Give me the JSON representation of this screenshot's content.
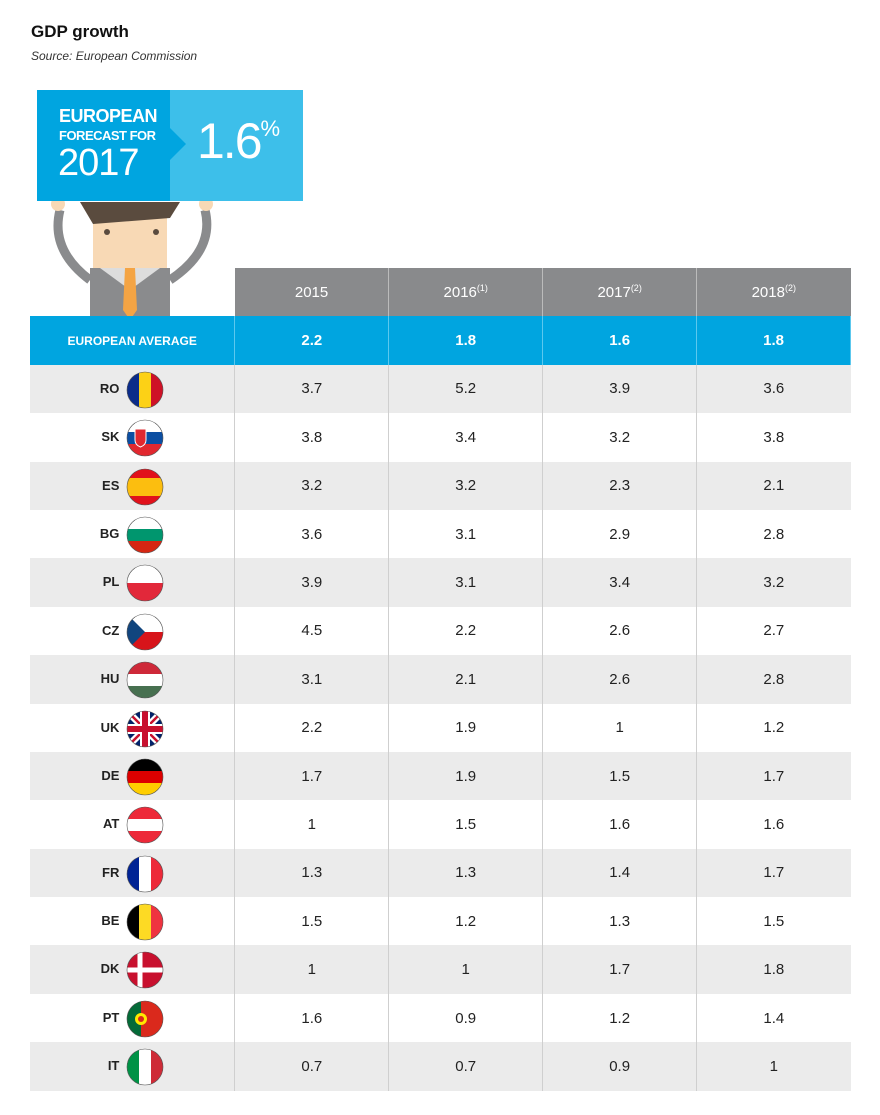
{
  "title": "GDP growth",
  "source": "Source: European Commission",
  "sign": {
    "line1": "EUROPEAN",
    "line2": "FORECAST FOR",
    "year": "2017",
    "value": "1.6",
    "unit": "%"
  },
  "chart_data": {
    "type": "table",
    "columns": [
      {
        "year": "2015",
        "note": ""
      },
      {
        "year": "2016",
        "note": "(1)"
      },
      {
        "year": "2017",
        "note": "(2)"
      },
      {
        "year": "2018",
        "note": "(2)"
      }
    ],
    "average": {
      "label": "EUROPEAN AVERAGE",
      "values": [
        "2.2",
        "1.8",
        "1.6",
        "1.8"
      ]
    },
    "rows": [
      {
        "code": "RO",
        "values": [
          "3.7",
          "5.2",
          "3.9",
          "3.6"
        ]
      },
      {
        "code": "SK",
        "values": [
          "3.8",
          "3.4",
          "3.2",
          "3.8"
        ]
      },
      {
        "code": "ES",
        "values": [
          "3.2",
          "3.2",
          "2.3",
          "2.1"
        ]
      },
      {
        "code": "BG",
        "values": [
          "3.6",
          "3.1",
          "2.9",
          "2.8"
        ]
      },
      {
        "code": "PL",
        "values": [
          "3.9",
          "3.1",
          "3.4",
          "3.2"
        ]
      },
      {
        "code": "CZ",
        "values": [
          "4.5",
          "2.2",
          "2.6",
          "2.7"
        ]
      },
      {
        "code": "HU",
        "values": [
          "3.1",
          "2.1",
          "2.6",
          "2.8"
        ]
      },
      {
        "code": "UK",
        "values": [
          "2.2",
          "1.9",
          "1",
          "1.2"
        ]
      },
      {
        "code": "DE",
        "values": [
          "1.7",
          "1.9",
          "1.5",
          "1.7"
        ]
      },
      {
        "code": "AT",
        "values": [
          "1",
          "1.5",
          "1.6",
          "1.6"
        ]
      },
      {
        "code": "FR",
        "values": [
          "1.3",
          "1.3",
          "1.4",
          "1.7"
        ]
      },
      {
        "code": "BE",
        "values": [
          "1.5",
          "1.2",
          "1.3",
          "1.5"
        ]
      },
      {
        "code": "DK",
        "values": [
          "1",
          "1",
          "1.7",
          "1.8"
        ]
      },
      {
        "code": "PT",
        "values": [
          "1.6",
          "0.9",
          "1.2",
          "1.4"
        ]
      },
      {
        "code": "IT",
        "values": [
          "0.7",
          "0.7",
          "0.9",
          "1"
        ]
      }
    ]
  }
}
